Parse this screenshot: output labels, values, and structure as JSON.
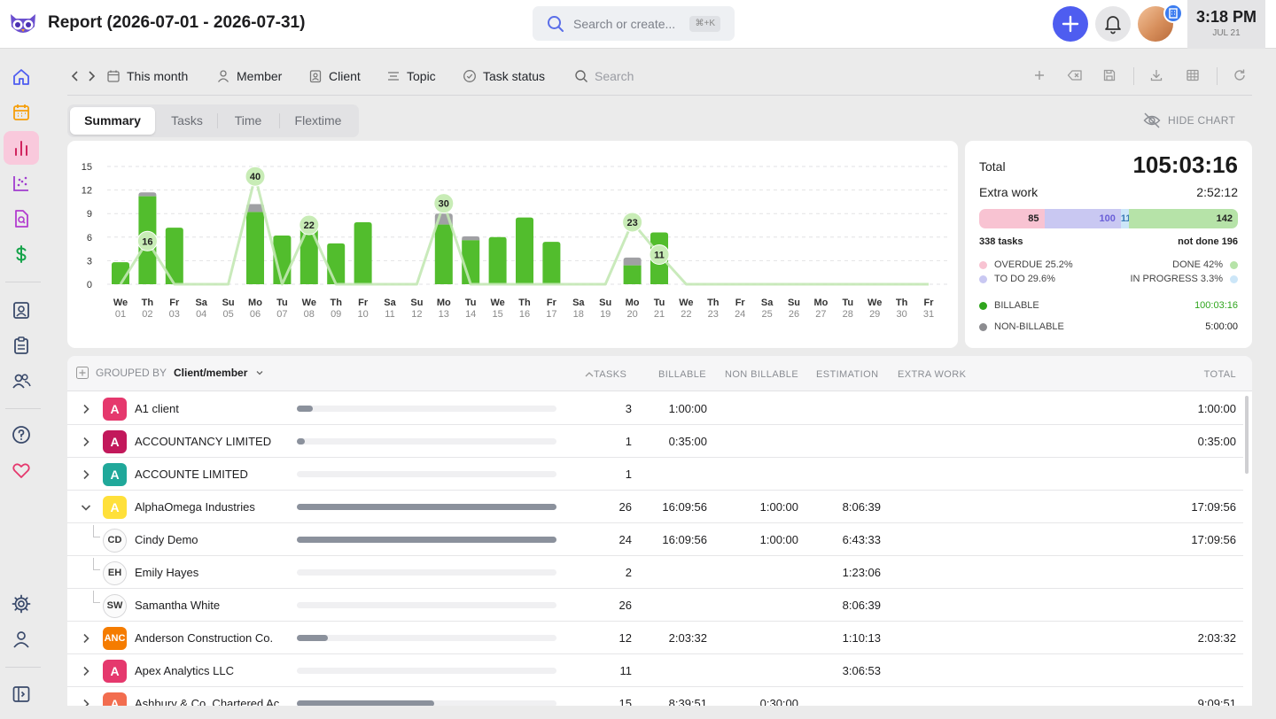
{
  "header": {
    "title": "Report (2026-07-01 - 2026-07-31)",
    "search_placeholder": "Search or create...",
    "search_shortcut": "⌘+K",
    "time": "3:18 PM",
    "date": "JUL 21"
  },
  "toolbar": {
    "period": "This month",
    "member": "Member",
    "client": "Client",
    "topic": "Topic",
    "task_status": "Task status",
    "search_placeholder": "Search"
  },
  "tabs": [
    "Summary",
    "Tasks",
    "Time",
    "Flextime"
  ],
  "hide_chart": "HIDE CHART",
  "chart_data": {
    "type": "bar",
    "y_ticks": [
      "15",
      "12",
      "9",
      "6",
      "3",
      "0"
    ],
    "ylim": [
      0,
      15
    ],
    "days": [
      "We",
      "Th",
      "Fr",
      "Sa",
      "Su",
      "Mo",
      "Tu",
      "We",
      "Th",
      "Fr",
      "Sa",
      "Su",
      "Mo",
      "Tu",
      "We",
      "Th",
      "Fr",
      "Sa",
      "Su",
      "Mo",
      "Tu",
      "We",
      "Th",
      "Fr",
      "Sa",
      "Su",
      "Mo",
      "Tu",
      "We",
      "Th",
      "Fr"
    ],
    "dates": [
      "01",
      "02",
      "03",
      "04",
      "05",
      "06",
      "07",
      "08",
      "09",
      "10",
      "11",
      "12",
      "13",
      "14",
      "15",
      "16",
      "17",
      "18",
      "19",
      "20",
      "21",
      "22",
      "23",
      "24",
      "25",
      "26",
      "27",
      "28",
      "29",
      "30",
      "31"
    ],
    "billable": [
      2.8,
      11.2,
      7.2,
      0,
      0,
      9.2,
      6.2,
      8.1,
      5.2,
      7.9,
      0,
      0,
      7.6,
      5.6,
      6.0,
      8.5,
      5.4,
      0,
      0,
      2.4,
      6.6,
      0,
      0,
      0,
      0,
      0,
      0,
      0,
      0,
      0,
      0
    ],
    "non_billable": [
      0,
      0.5,
      0,
      0,
      0,
      1.0,
      0,
      0,
      0,
      0,
      0,
      0,
      1.4,
      0.5,
      0,
      0,
      0,
      0,
      0,
      1.0,
      0,
      0,
      0,
      0,
      0,
      0,
      0,
      0,
      0,
      0,
      0
    ],
    "task_counts": [
      0,
      16,
      0,
      0,
      0,
      40,
      0,
      22,
      0,
      0,
      0,
      0,
      30,
      0,
      0,
      0,
      0,
      0,
      0,
      23,
      11,
      0,
      0,
      0,
      0,
      0,
      0,
      0,
      0,
      0,
      0
    ],
    "task_labels": {
      "1": "16",
      "5": "40",
      "7": "22",
      "12": "30",
      "19": "23",
      "20": "11"
    },
    "colors": {
      "billable": "#52bd2d",
      "non_billable": "#a0a0a4",
      "tasks_line": "#c3e8b4"
    },
    "grid": true
  },
  "stats": {
    "total_label": "Total",
    "total_value": "105:03:16",
    "extra_label": "Extra work",
    "extra_value": "2:52:12",
    "bar": [
      {
        "value": "85",
        "color": "#f8c3d2",
        "share": 0.252
      },
      {
        "value": "100",
        "color": "#c9c8f2",
        "share": 0.296
      },
      {
        "value": "11",
        "color": "#cce6f8",
        "share": 0.033
      },
      {
        "value": "142",
        "color": "#b6e3a8",
        "share": 0.42
      }
    ],
    "tasks_count": "338 tasks",
    "not_done": "not done 196",
    "overdue": "OVERDUE 25.2%",
    "todo": "TO DO 29.6%",
    "done": "DONE 42%",
    "in_progress": "IN PROGRESS 3.3%",
    "billable_label": "BILLABLE",
    "billable_value": "100:03:16",
    "nonbillable_label": "NON-BILLABLE",
    "nonbillable_value": "5:00:00"
  },
  "table": {
    "grouped_by_label": "GROUPED BY",
    "grouped_by_value": "Client/member",
    "headers": {
      "tasks": "TASKS",
      "billable": "BILLABLE",
      "non_billable": "NON BILLABLE",
      "estimation": "ESTIMATION",
      "extra_work": "EXTRA WORK",
      "total": "TOTAL"
    },
    "rows": [
      {
        "badge": "A",
        "color": "#e5386d",
        "name": "A1 client",
        "progress": 0.06,
        "tasks": "3",
        "billable": "1:00:00",
        "non_billable": "",
        "estimation": "",
        "total": "1:00:00",
        "level": 0,
        "expanded": false
      },
      {
        "badge": "A",
        "color": "#c2185b",
        "name": "ACCOUNTANCY LIMITED",
        "progress": 0.03,
        "tasks": "1",
        "billable": "0:35:00",
        "non_billable": "",
        "estimation": "",
        "total": "0:35:00",
        "level": 0,
        "expanded": false
      },
      {
        "badge": "A",
        "color": "#20a89a",
        "name": "ACCOUNTE LIMITED",
        "progress": 0,
        "tasks": "1",
        "billable": "",
        "non_billable": "",
        "estimation": "",
        "total": "",
        "level": 0,
        "expanded": false
      },
      {
        "badge": "A",
        "color": "#ffe03a",
        "name": "AlphaOmega Industries",
        "progress": 1.0,
        "tasks": "26",
        "billable": "16:09:56",
        "non_billable": "1:00:00",
        "estimation": "8:06:39",
        "total": "17:09:56",
        "level": 0,
        "expanded": true
      },
      {
        "badge": "CD",
        "color": "",
        "name": "Cindy Demo",
        "progress": 1.0,
        "tasks": "24",
        "billable": "16:09:56",
        "non_billable": "1:00:00",
        "estimation": "6:43:33",
        "total": "17:09:56",
        "level": 1
      },
      {
        "badge": "EH",
        "color": "",
        "name": "Emily Hayes",
        "progress": 0,
        "tasks": "2",
        "billable": "",
        "non_billable": "",
        "estimation": "1:23:06",
        "total": "",
        "level": 1
      },
      {
        "badge": "SW",
        "color": "",
        "name": "Samantha White",
        "progress": 0,
        "tasks": "26",
        "billable": "",
        "non_billable": "",
        "estimation": "8:06:39",
        "total": "",
        "level": 1
      },
      {
        "badge": "ANC",
        "color": "#f57c00",
        "name": "Anderson Construction Co.",
        "progress": 0.12,
        "tasks": "12",
        "billable": "2:03:32",
        "non_billable": "",
        "estimation": "1:10:13",
        "total": "2:03:32",
        "level": 0,
        "expanded": false
      },
      {
        "badge": "A",
        "color": "#e5386d",
        "name": "Apex Analytics LLC",
        "progress": 0,
        "tasks": "11",
        "billable": "",
        "non_billable": "",
        "estimation": "3:06:53",
        "total": "",
        "level": 0,
        "expanded": false
      },
      {
        "badge": "A",
        "color": "#f26d4f",
        "name": "Ashbury & Co. Chartered Ac...",
        "progress": 0.53,
        "tasks": "15",
        "billable": "8:39:51",
        "non_billable": "0:30:00",
        "estimation": "",
        "total": "9:09:51",
        "level": 0,
        "expanded": false
      }
    ]
  }
}
